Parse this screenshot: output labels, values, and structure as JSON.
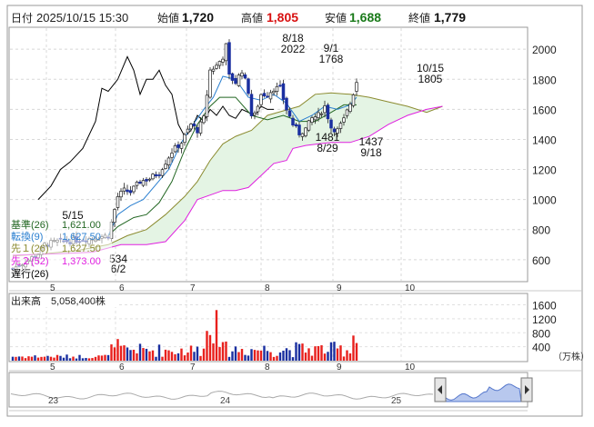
{
  "header": {
    "date_label": "日付",
    "datetime": "2025/10/15 15:30",
    "open_label": "始値",
    "open": "1,720",
    "high_label": "高値",
    "high": "1,805",
    "low_label": "安値",
    "low": "1,688",
    "close_label": "終値",
    "close": "1,779"
  },
  "colors": {
    "up": "#e8201c",
    "down": "#1a2fa0",
    "kijun": "#226622",
    "tenkan": "#2a7fd0",
    "senkou1": "#8b8b30",
    "senkou2": "#e020e0",
    "chikou": "#000000",
    "cloud": "#e4f4e4"
  },
  "legend": [
    {
      "label": "基準(26)",
      "value": "1,621.00",
      "color": "#226622"
    },
    {
      "label": "転換(9)",
      "value": "1,627.50",
      "color": "#2a7fd0"
    },
    {
      "label": "先１(26)",
      "value": "1,627.50",
      "color": "#8b8b30"
    },
    {
      "label": "先２(52)",
      "value": "1,373.00",
      "color": "#e020e0"
    },
    {
      "label": "遅行(26)",
      "value": "",
      "color": "#000000"
    }
  ],
  "volume_label": "出来高",
  "volume_value": "5,058,400株",
  "volume_unit": "（万株）",
  "nav_labels": [
    "23",
    "24",
    "25"
  ],
  "annotations": [
    {
      "lines": [
        "8/18",
        "2022"
      ]
    },
    {
      "lines": [
        "9/1",
        "1768"
      ]
    },
    {
      "lines": [
        "10/15",
        "1805"
      ]
    },
    {
      "lines": [
        "1481",
        "8/29"
      ]
    },
    {
      "lines": [
        "1437",
        "9/18"
      ]
    },
    {
      "lines": [
        "5/15"
      ]
    },
    {
      "lines": [
        "534"
      ]
    },
    {
      "lines": [
        "6/2"
      ]
    }
  ],
  "chart_data": {
    "type": "candlestick",
    "price_axis": {
      "ticks": [
        600,
        800,
        1000,
        1200,
        1400,
        1600,
        1800,
        2000
      ],
      "range": [
        460,
        2140
      ]
    },
    "volume_axis": {
      "ticks": [
        400,
        800,
        1200,
        1600
      ],
      "range": [
        0,
        1900
      ],
      "unit": "万株"
    },
    "month_labels": [
      "5",
      "6",
      "7",
      "8",
      "9",
      "10"
    ],
    "price_anchors": [
      [
        0,
        540
      ],
      [
        5,
        600
      ],
      [
        8,
        640
      ],
      [
        10,
        700
      ],
      [
        14,
        720
      ],
      [
        18,
        725
      ],
      [
        22,
        735
      ],
      [
        26,
        745
      ],
      [
        28,
        755
      ],
      [
        30,
        760
      ],
      [
        33,
        1020
      ],
      [
        35,
        1060
      ],
      [
        37,
        1050
      ],
      [
        40,
        1120
      ],
      [
        43,
        1140
      ],
      [
        46,
        1180
      ],
      [
        50,
        1320
      ],
      [
        53,
        1380
      ],
      [
        56,
        1500
      ],
      [
        58,
        1460
      ],
      [
        60,
        1540
      ],
      [
        62,
        1860
      ],
      [
        64,
        1890
      ],
      [
        66,
        1950
      ],
      [
        67,
        2022
      ],
      [
        68,
        1820
      ],
      [
        70,
        1780
      ],
      [
        72,
        1860
      ],
      [
        74,
        1720
      ],
      [
        75,
        1560
      ],
      [
        76,
        1560
      ],
      [
        78,
        1700
      ],
      [
        80,
        1700
      ],
      [
        82,
        1740
      ],
      [
        84,
        1740
      ],
      [
        86,
        1600
      ],
      [
        88,
        1500
      ],
      [
        90,
        1440
      ],
      [
        92,
        1470
      ],
      [
        94,
        1540
      ],
      [
        96,
        1560
      ],
      [
        98,
        1620
      ],
      [
        100,
        1480
      ],
      [
        102,
        1460
      ],
      [
        104,
        1530
      ],
      [
        106,
        1640
      ],
      [
        108,
        1780
      ]
    ],
    "kijun": [
      [
        30,
        760
      ],
      [
        33,
        820
      ],
      [
        38,
        880
      ],
      [
        42,
        900
      ],
      [
        46,
        980
      ],
      [
        50,
        1120
      ],
      [
        54,
        1330
      ],
      [
        58,
        1500
      ],
      [
        62,
        1620
      ],
      [
        65,
        1680
      ],
      [
        70,
        1680
      ],
      [
        75,
        1560
      ],
      [
        80,
        1530
      ],
      [
        85,
        1560
      ],
      [
        90,
        1520
      ],
      [
        95,
        1520
      ],
      [
        100,
        1580
      ],
      [
        104,
        1630
      ],
      [
        108,
        1630
      ]
    ],
    "tenkan": [
      [
        30,
        760
      ],
      [
        33,
        900
      ],
      [
        37,
        960
      ],
      [
        41,
        1000
      ],
      [
        45,
        1100
      ],
      [
        49,
        1200
      ],
      [
        53,
        1380
      ],
      [
        56,
        1480
      ],
      [
        60,
        1600
      ],
      [
        63,
        1680
      ],
      [
        66,
        1820
      ],
      [
        70,
        1800
      ],
      [
        74,
        1680
      ],
      [
        78,
        1660
      ],
      [
        82,
        1700
      ],
      [
        86,
        1640
      ],
      [
        90,
        1520
      ],
      [
        94,
        1560
      ],
      [
        98,
        1620
      ],
      [
        102,
        1600
      ],
      [
        106,
        1630
      ],
      [
        108,
        1680
      ]
    ],
    "senkou1": [
      [
        0,
        625
      ],
      [
        10,
        640
      ],
      [
        20,
        660
      ],
      [
        30,
        700
      ],
      [
        36,
        760
      ],
      [
        42,
        800
      ],
      [
        48,
        900
      ],
      [
        54,
        1020
      ],
      [
        58,
        1120
      ],
      [
        62,
        1260
      ],
      [
        66,
        1370
      ],
      [
        70,
        1420
      ],
      [
        75,
        1460
      ],
      [
        80,
        1560
      ],
      [
        85,
        1590
      ],
      [
        90,
        1620
      ],
      [
        95,
        1700
      ],
      [
        100,
        1710
      ],
      [
        106,
        1700
      ],
      [
        112,
        1680
      ],
      [
        118,
        1650
      ],
      [
        124,
        1620
      ],
      [
        130,
        1580
      ],
      [
        135,
        1620
      ]
    ],
    "senkou2": [
      [
        0,
        630
      ],
      [
        15,
        640
      ],
      [
        25,
        650
      ],
      [
        34,
        700
      ],
      [
        42,
        700
      ],
      [
        48,
        720
      ],
      [
        54,
        860
      ],
      [
        58,
        1000
      ],
      [
        62,
        1030
      ],
      [
        66,
        1060
      ],
      [
        70,
        1060
      ],
      [
        74,
        1080
      ],
      [
        78,
        1160
      ],
      [
        82,
        1240
      ],
      [
        86,
        1260
      ],
      [
        88,
        1340
      ],
      [
        92,
        1360
      ],
      [
        96,
        1370
      ],
      [
        100,
        1380
      ],
      [
        106,
        1380
      ],
      [
        112,
        1420
      ],
      [
        118,
        1500
      ],
      [
        124,
        1560
      ],
      [
        130,
        1600
      ],
      [
        135,
        1620
      ]
    ],
    "chikou": [
      [
        8,
        1000
      ],
      [
        12,
        1090
      ],
      [
        15,
        1200
      ],
      [
        18,
        1250
      ],
      [
        22,
        1340
      ],
      [
        26,
        1520
      ],
      [
        28,
        1740
      ],
      [
        30,
        1720
      ],
      [
        33,
        1800
      ],
      [
        36,
        1950
      ],
      [
        38,
        1860
      ],
      [
        40,
        1700
      ],
      [
        42,
        1800
      ],
      [
        44,
        1800
      ],
      [
        46,
        1860
      ],
      [
        48,
        1760
      ],
      [
        50,
        1700
      ],
      [
        52,
        1500
      ],
      [
        54,
        1420
      ],
      [
        56,
        1460
      ],
      [
        58,
        1560
      ],
      [
        60,
        1520
      ],
      [
        62,
        1600
      ],
      [
        64,
        1560
      ],
      [
        66,
        1620
      ],
      [
        68,
        1560
      ],
      [
        70,
        1540
      ],
      [
        72,
        1600
      ],
      [
        74,
        1580
      ],
      [
        76,
        1560
      ],
      [
        78,
        1620
      ],
      [
        80,
        1600
      ],
      [
        82,
        1600
      ]
    ]
  }
}
